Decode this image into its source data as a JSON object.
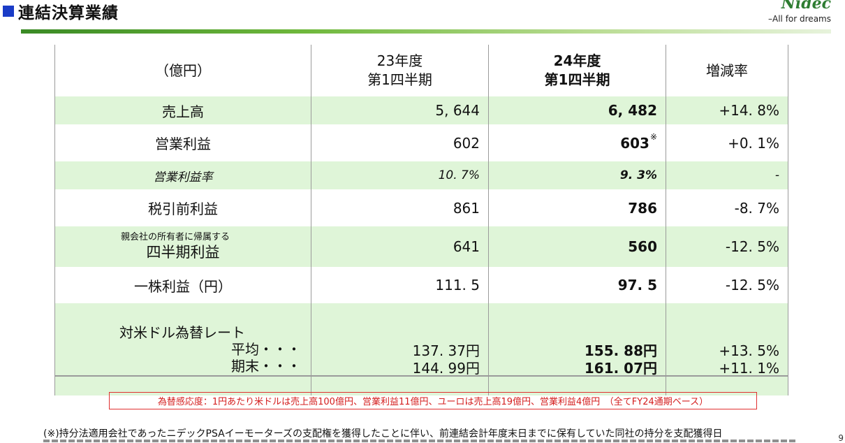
{
  "header": {
    "title": "連結決算業績",
    "logo_tagline": "–All for dreams"
  },
  "table": {
    "unit_label": "（億円）",
    "col_prev": [
      "23年度",
      "第1四半期"
    ],
    "col_curr": [
      "24年度",
      "第1四半期"
    ],
    "col_change": "増減率",
    "rows": {
      "sales": {
        "label": "売上高",
        "prev": "5, 644",
        "curr": "6, 482",
        "change": "+14. 8%"
      },
      "op_income": {
        "label": "営業利益",
        "prev": "602",
        "curr": "603",
        "curr_mark": "※",
        "change": "+0. 1%"
      },
      "op_margin": {
        "label": "営業利益率",
        "prev": "10. 7%",
        "curr": "9. 3%",
        "change": "-"
      },
      "pretax": {
        "label": "税引前利益",
        "prev": "861",
        "curr": "786",
        "change": "-8. 7%"
      },
      "net": {
        "label_small": "親会社の所有者に帰属する",
        "label": "四半期利益",
        "prev": "641",
        "curr": "560",
        "change": "-12. 5%"
      },
      "eps": {
        "label": "一株利益（円）",
        "prev": "111. 5",
        "curr": "97. 5",
        "change": "-12. 5%"
      },
      "fx": {
        "label": "対米ドル為替レート",
        "sub_avg": "平均・・・",
        "sub_end": "期末・・・",
        "prev_avg": "137. 37円",
        "prev_end": "144. 99円",
        "curr_avg": "155. 88円",
        "curr_end": "161. 07円",
        "change_avg": "+13. 5%",
        "change_end": "+11. 1%"
      }
    }
  },
  "sensitivity_note": "為替感応度：1円あたり米ドルは売上高100億円、営業利益11億円、ユーロは売上高19億円、営業利益4億円　（全てFY24通期ベース）",
  "footnote": "(※)持分法適用会社であったニデックPSAイーモーターズの支配権を獲得したことに伴い、前連結会計年度末日までに保有していた同社の持分を支配獲得日",
  "page_number": "9"
}
